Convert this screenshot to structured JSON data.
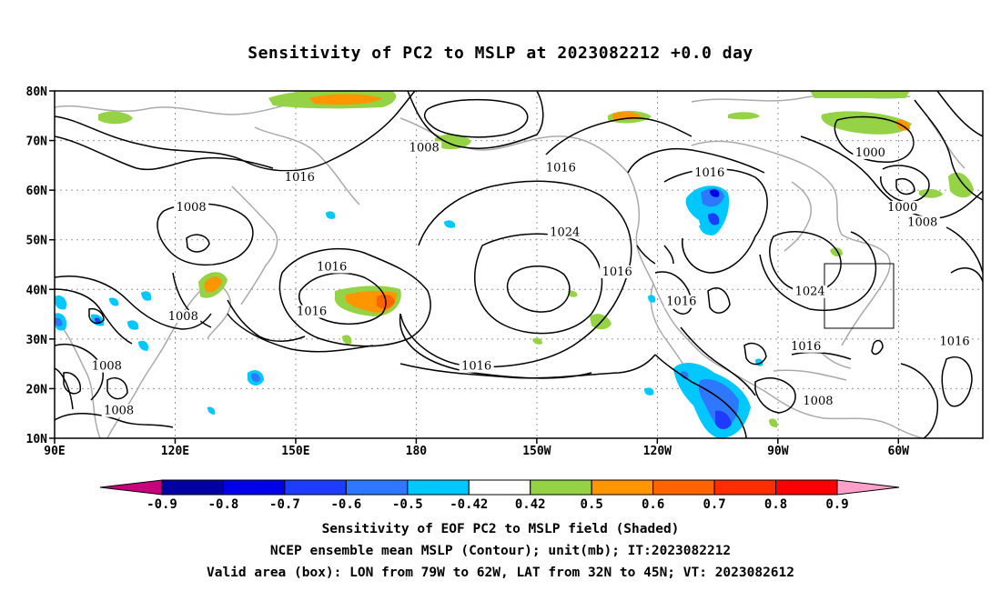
{
  "title": "Sensitivity of PC2 to MSLP at 2023082212 +0.0 day",
  "lat_axis": {
    "labels": [
      {
        "text": "80N",
        "lat": 80
      },
      {
        "text": "70N",
        "lat": 70
      },
      {
        "text": "60N",
        "lat": 60
      },
      {
        "text": "50N",
        "lat": 50
      },
      {
        "text": "40N",
        "lat": 40
      },
      {
        "text": "30N",
        "lat": 30
      },
      {
        "text": "20N",
        "lat": 20
      },
      {
        "text": "10N",
        "lat": 10
      }
    ]
  },
  "lon_axis": {
    "labels": [
      {
        "text": "90E",
        "lon": 90
      },
      {
        "text": "120E",
        "lon": 120
      },
      {
        "text": "150E",
        "lon": 150
      },
      {
        "text": "180",
        "lon": 180
      },
      {
        "text": "150W",
        "lon": 210
      },
      {
        "text": "120W",
        "lon": 240
      },
      {
        "text": "90W",
        "lon": 270
      },
      {
        "text": "60W",
        "lon": 300
      }
    ]
  },
  "map_extent": {
    "lon_min": 90,
    "lon_max": 321,
    "lat_min": 10,
    "lat_max": 80
  },
  "contour_labels": [
    {
      "text": "1016",
      "lon": 151,
      "lat": 62
    },
    {
      "text": "1008",
      "lon": 124,
      "lat": 56
    },
    {
      "text": "1008",
      "lon": 182,
      "lat": 68
    },
    {
      "text": "1016",
      "lon": 216,
      "lat": 64
    },
    {
      "text": "1016",
      "lon": 253,
      "lat": 63
    },
    {
      "text": "1000",
      "lon": 293,
      "lat": 67
    },
    {
      "text": "1000",
      "lon": 301,
      "lat": 56
    },
    {
      "text": "1008",
      "lon": 306,
      "lat": 53
    },
    {
      "text": "1024",
      "lon": 217,
      "lat": 51
    },
    {
      "text": "1016",
      "lon": 159,
      "lat": 44
    },
    {
      "text": "1016",
      "lon": 154,
      "lat": 35
    },
    {
      "text": "1016",
      "lon": 230,
      "lat": 43
    },
    {
      "text": "1024",
      "lon": 278,
      "lat": 39
    },
    {
      "text": "1016",
      "lon": 246,
      "lat": 37
    },
    {
      "text": "1008",
      "lon": 122,
      "lat": 34
    },
    {
      "text": "1008",
      "lon": 103,
      "lat": 24
    },
    {
      "text": "1008",
      "lon": 106,
      "lat": 15
    },
    {
      "text": "1016",
      "lon": 195,
      "lat": 24
    },
    {
      "text": "1016",
      "lon": 277,
      "lat": 28
    },
    {
      "text": "1016",
      "lon": 314,
      "lat": 29
    },
    {
      "text": "1008",
      "lon": 280,
      "lat": 17
    }
  ],
  "valid_area": {
    "lon_min": 281,
    "lon_max": 298,
    "lat_min": 32,
    "lat_max": 45
  },
  "colorbar": {
    "levels": [
      "-0.9",
      "-0.8",
      "-0.7",
      "-0.6",
      "-0.5",
      "-0.42",
      "0.42",
      "0.5",
      "0.6",
      "0.7",
      "0.8",
      "0.9"
    ],
    "colors": [
      "#c8007c",
      "#0000a0",
      "#0000e6",
      "#1e3cff",
      "#2d78ff",
      "#00c8ff",
      "#ffffff",
      "#96d246",
      "#ff9600",
      "#ff6400",
      "#ff2d00",
      "#ff0000",
      "#ffa0c8"
    ]
  },
  "captions": {
    "line1": "Sensitivity of EOF PC2 to MSLP field (Shaded)",
    "line2": "NCEP ensemble mean MSLP (Contour); unit(mb); IT:2023082212",
    "line3": "Valid area (box): LON from 79W to 62W, LAT from 32N to 45N; VT: 2023082612"
  }
}
